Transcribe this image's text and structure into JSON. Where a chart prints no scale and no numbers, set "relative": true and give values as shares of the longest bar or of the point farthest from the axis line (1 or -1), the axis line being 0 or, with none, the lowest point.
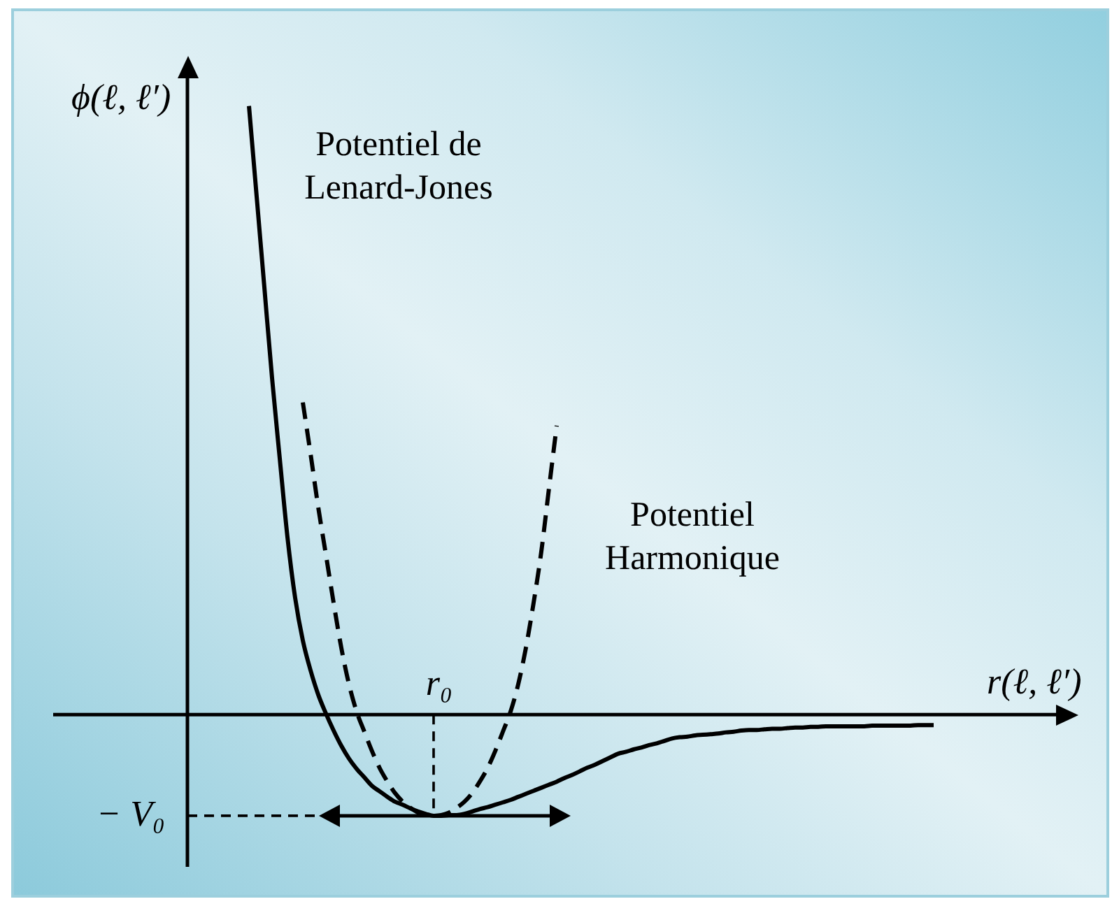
{
  "chart_data": {
    "type": "line",
    "relative": true,
    "xlabel": "r(ℓ, ℓ′)",
    "ylabel": "ϕ(ℓ, ℓ′)",
    "categories": [
      null,
      null,
      null,
      null,
      null,
      null,
      null,
      null,
      null,
      null,
      null,
      null,
      null,
      null,
      null,
      null,
      null,
      null,
      null,
      null,
      null,
      null,
      null,
      null,
      null,
      null,
      null,
      null,
      null,
      null,
      null,
      null,
      null,
      null,
      null,
      null,
      null,
      null,
      null,
      null,
      null,
      null,
      null,
      null,
      null,
      null,
      null,
      null,
      null,
      null,
      null,
      null,
      null,
      null,
      null,
      null,
      null,
      null,
      null,
      null,
      null,
      null,
      null,
      null,
      null,
      null,
      null,
      null,
      null,
      null,
      null,
      null,
      null,
      null,
      null,
      null,
      null,
      null,
      null,
      null,
      null,
      null,
      null,
      null,
      null,
      null,
      null,
      null,
      null,
      null,
      null,
      null,
      null,
      null,
      null,
      null,
      null,
      null
    ],
    "series": [
      {
        "name": "Potentiel de Lenard-Jones",
        "color": "#000000",
        "line_style": "solid",
        "values": [
          null,
          null,
          null,
          null,
          null,
          null,
          null,
          null,
          1.0,
          0.851,
          0.702,
          0.553,
          0.421,
          0.292,
          0.192,
          0.122,
          0.073,
          0.033,
          0.002,
          -0.026,
          -0.051,
          -0.072,
          -0.089,
          -0.103,
          -0.117,
          -0.126,
          -0.135,
          -0.143,
          -0.148,
          -0.154,
          -0.159,
          -0.163,
          -0.166,
          -0.166,
          -0.165,
          -0.165,
          -0.163,
          -0.159,
          -0.155,
          -0.152,
          -0.148,
          -0.144,
          -0.14,
          -0.135,
          -0.13,
          -0.125,
          -0.12,
          -0.115,
          -0.11,
          -0.104,
          -0.099,
          -0.093,
          -0.087,
          -0.082,
          -0.076,
          -0.07,
          -0.064,
          -0.061,
          -0.057,
          -0.054,
          -0.05,
          -0.047,
          -0.043,
          -0.039,
          -0.037,
          -0.036,
          -0.034,
          -0.033,
          -0.032,
          -0.031,
          -0.029,
          -0.028,
          -0.026,
          -0.025,
          -0.025,
          -0.024,
          -0.023,
          -0.023,
          -0.022,
          -0.021,
          -0.021,
          -0.02,
          -0.02,
          -0.019,
          -0.019,
          -0.019,
          -0.019,
          -0.019,
          -0.019,
          -0.018,
          -0.018,
          -0.018,
          -0.018,
          -0.018,
          -0.018,
          -0.017,
          -0.017,
          -0.017
        ]
      },
      {
        "name": "Potentiel Harmonique",
        "color": "#000000",
        "line_style": "dashed",
        "values": [
          null,
          null,
          null,
          null,
          null,
          null,
          null,
          null,
          null,
          null,
          null,
          null,
          null,
          null,
          null,
          0.513,
          0.429,
          0.341,
          0.263,
          0.184,
          0.11,
          0.05,
          0.005,
          -0.028,
          -0.06,
          -0.088,
          -0.11,
          -0.129,
          -0.143,
          -0.153,
          -0.161,
          -0.165,
          -0.166,
          -0.165,
          -0.161,
          -0.153,
          -0.143,
          -0.129,
          -0.11,
          -0.088,
          -0.06,
          -0.028,
          0.005,
          0.05,
          0.11,
          0.184,
          0.268,
          0.372,
          0.475,
          null,
          null,
          null,
          null,
          null,
          null,
          null,
          null,
          null,
          null,
          null,
          null,
          null,
          null,
          null,
          null,
          null,
          null,
          null,
          null,
          null,
          null,
          null,
          null,
          null,
          null,
          null,
          null,
          null,
          null,
          null,
          null,
          null,
          null,
          null,
          null,
          null,
          null,
          null,
          null,
          null,
          null,
          null,
          null,
          null,
          null,
          null,
          null,
          null
        ]
      }
    ],
    "annotations": [
      {
        "text": "r₀",
        "y": -0.166
      }
    ],
    "ref_lines": [
      {
        "axis": "y",
        "value": -0.166,
        "label": "− V₀",
        "line_style": "dashed",
        "color": "#000000"
      }
    ],
    "grid": false,
    "legend": false,
    "marker": "none"
  }
}
